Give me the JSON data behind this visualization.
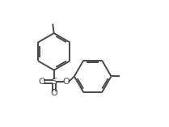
{
  "background": "#ffffff",
  "line_color": "#4a4a4a",
  "line_width": 1.4,
  "dbo": 0.013,
  "figsize": [
    2.09,
    1.57
  ],
  "dpi": 100,
  "xlim": [
    0,
    1
  ],
  "ylim": [
    0,
    1
  ]
}
